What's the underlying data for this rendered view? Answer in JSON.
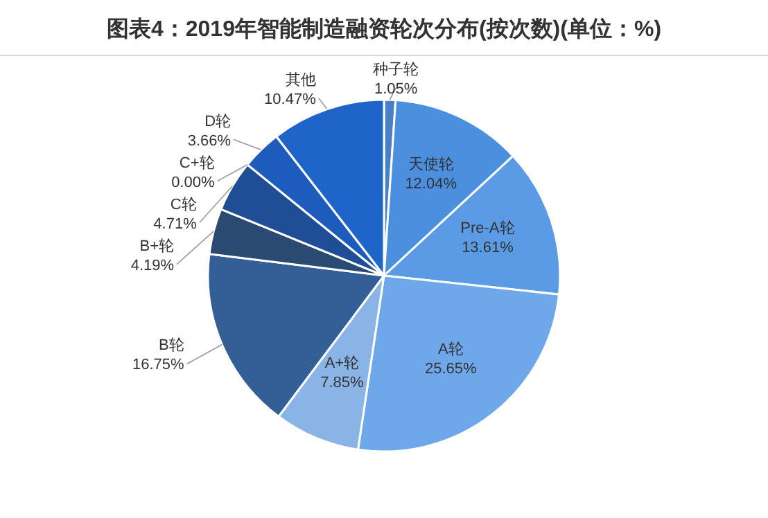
{
  "chart_data": {
    "type": "pie",
    "title": "图表4：2019年智能制造融资轮次分布(按次数)(单位：%)",
    "categories": [
      "种子轮",
      "天使轮",
      "Pre-A轮",
      "A轮",
      "A+轮",
      "B轮",
      "B+轮",
      "C轮",
      "C+轮",
      "D轮",
      "其他"
    ],
    "values": [
      1.05,
      12.04,
      13.61,
      25.65,
      7.85,
      16.75,
      4.19,
      4.71,
      0.0,
      3.66,
      10.47
    ],
    "value_labels": [
      "1.05%",
      "12.04%",
      "13.61%",
      "25.65%",
      "7.85%",
      "16.75%",
      "4.19%",
      "4.71%",
      "0.00%",
      "3.66%",
      "10.47%"
    ],
    "colors": [
      "#4a7fc4",
      "#4b8fdf",
      "#5b9be5",
      "#6fa8ea",
      "#8ab4e6",
      "#335f96",
      "#2b4a72",
      "#1f4e96",
      null,
      "#1d5cbc",
      "#1f65c9"
    ]
  }
}
